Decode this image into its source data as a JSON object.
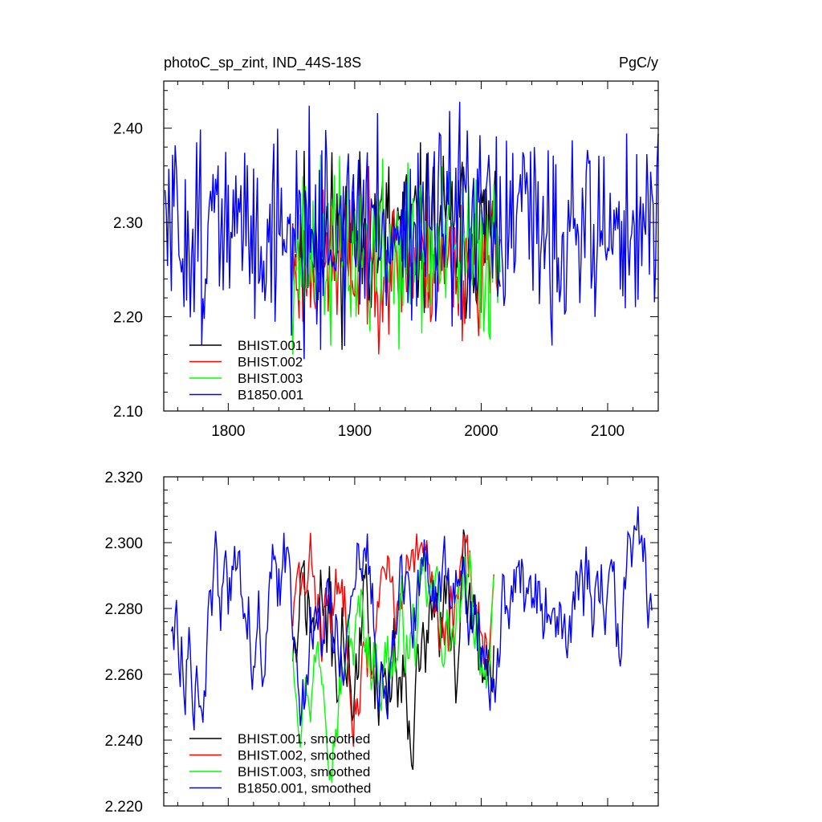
{
  "chart_data": [
    {
      "type": "line",
      "title_left": "photoC_sp_zint, IND_44S-18S",
      "title_right": "PgC/y",
      "xlim": [
        1749,
        2140
      ],
      "ylim": [
        2.1,
        2.45
      ],
      "xticks": [
        1800,
        1900,
        2000,
        2100
      ],
      "xtick_labels": [
        "1800",
        "1900",
        "2000",
        "2100"
      ],
      "yticks": [
        2.1,
        2.2,
        2.3,
        2.4
      ],
      "ytick_labels": [
        "2.10",
        "2.20",
        "2.30",
        "2.40"
      ],
      "legend_position": "bottom-left",
      "grid": false,
      "series": [
        {
          "name": "BHIST.001",
          "color": "#000000",
          "x_start": 1850,
          "x_end": 2015,
          "seed": 11,
          "mean": 2.27,
          "amp": 0.045,
          "max": 2.385,
          "min": 2.165
        },
        {
          "name": "BHIST.002",
          "color": "#ff0000",
          "x_start": 1850,
          "x_end": 2015,
          "seed": 23,
          "mean": 2.27,
          "amp": 0.045,
          "max": 2.36,
          "min": 2.16
        },
        {
          "name": "BHIST.003",
          "color": "#00ff00",
          "x_start": 1850,
          "x_end": 2015,
          "seed": 37,
          "mean": 2.272,
          "amp": 0.045,
          "max": 2.372,
          "min": 2.16
        },
        {
          "name": "B1850.001",
          "color": "#0000ff",
          "x_start": 1750,
          "x_end": 2140,
          "seed": 51,
          "mean": 2.275,
          "amp": 0.045,
          "max": 2.428,
          "min": 2.155
        }
      ]
    },
    {
      "type": "line",
      "xlim": [
        1749,
        2140
      ],
      "ylim": [
        2.22,
        2.32
      ],
      "xticks": [
        1800,
        1900,
        2000,
        2100
      ],
      "yticks": [
        2.22,
        2.24,
        2.26,
        2.28,
        2.3,
        2.32
      ],
      "ytick_labels": [
        "2.220",
        "2.240",
        "2.260",
        "2.280",
        "2.300",
        "2.320"
      ],
      "legend_position": "bottom-left",
      "grid": false,
      "series": [
        {
          "name": "BHIST.001, smoothed",
          "color": "#000000",
          "x_start": 1851,
          "x_end": 2010,
          "seed": 71,
          "mean": 2.268,
          "amp": 0.016,
          "max": 2.304,
          "min": 2.231
        },
        {
          "name": "BHIST.002, smoothed",
          "color": "#ff0000",
          "x_start": 1851,
          "x_end": 2010,
          "seed": 83,
          "mean": 2.268,
          "amp": 0.016,
          "max": 2.303,
          "min": 2.238
        },
        {
          "name": "BHIST.003, smoothed",
          "color": "#00ff00",
          "x_start": 1851,
          "x_end": 2010,
          "seed": 97,
          "mean": 2.268,
          "amp": 0.016,
          "max": 2.298,
          "min": 2.227
        },
        {
          "name": "B1850.001, smoothed",
          "color": "#0000ff",
          "x_start": 1755,
          "x_end": 2135,
          "seed": 113,
          "mean": 2.272,
          "amp": 0.015,
          "max": 2.311,
          "min": 2.243
        }
      ]
    }
  ]
}
